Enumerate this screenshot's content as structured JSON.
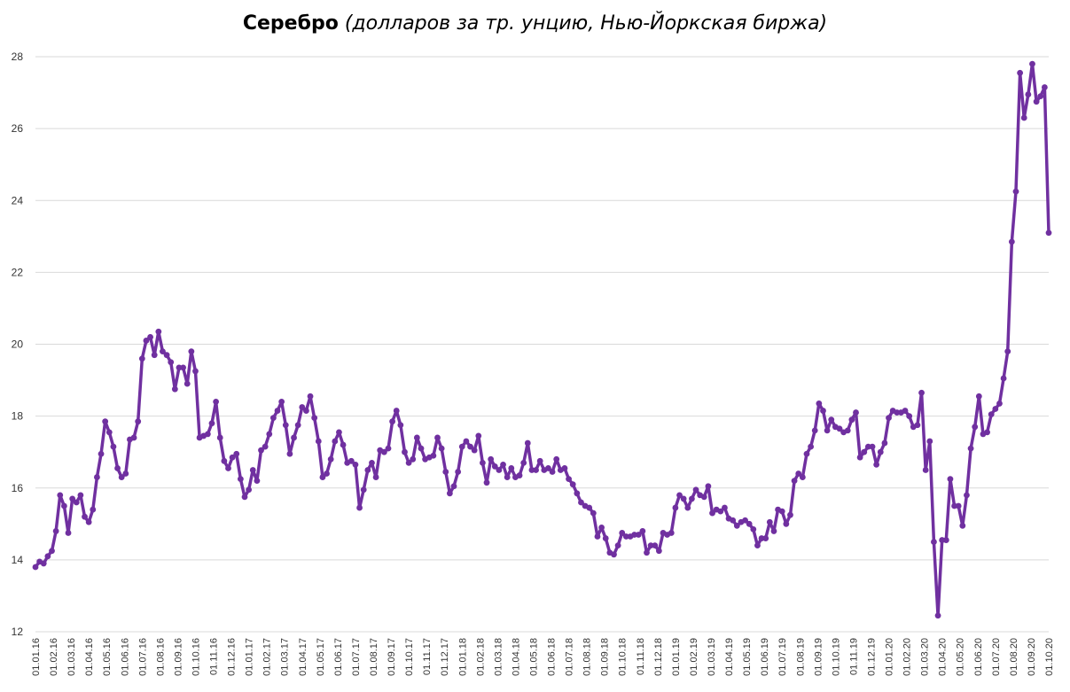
{
  "chart_data": {
    "type": "line",
    "title": "Серебро",
    "subtitle": "(долларов за тр. унцию, Нью-Йоркская биржа)",
    "xlabel": "",
    "ylabel": "",
    "ylim": [
      12,
      28
    ],
    "yticks": [
      12,
      14,
      16,
      18,
      20,
      22,
      24,
      26,
      28
    ],
    "grid": true,
    "legend": "none",
    "line_color": "#7030a0",
    "x_tick_labels": [
      "01.01.16",
      "01.02.16",
      "01.03.16",
      "01.04.16",
      "01.05.16",
      "01.06.16",
      "01.07.16",
      "01.08.16",
      "01.09.16",
      "01.10.16",
      "01.11.16",
      "01.12.16",
      "01.01.17",
      "01.02.17",
      "01.03.17",
      "01.04.17",
      "01.05.17",
      "01.06.17",
      "01.07.17",
      "01.08.17",
      "01.09.17",
      "01.10.17",
      "01.11.17",
      "01.12.17",
      "01.01.18",
      "01.02.18",
      "01.03.18",
      "01.04.18",
      "01.05.18",
      "01.06.18",
      "01.07.18",
      "01.08.18",
      "01.09.18",
      "01.10.18",
      "01.11.18",
      "01.12.18",
      "01.01.19",
      "01.02.19",
      "01.03.19",
      "01.04.19",
      "01.05.19",
      "01.06.19",
      "01.07.19",
      "01.08.19",
      "01.09.19",
      "01.10.19",
      "01.11.19",
      "01.12.19",
      "01.01.20",
      "01.02.20",
      "01.03.20",
      "01.04.20",
      "01.05.20",
      "01.06.20",
      "01.07.20",
      "01.08.20",
      "01.09.20",
      "01.10.20"
    ],
    "series": [
      {
        "values": [
          13.8,
          13.95,
          13.9,
          14.1,
          14.25,
          14.8,
          15.8,
          15.5,
          14.75,
          15.7,
          15.6,
          15.8,
          15.2,
          15.05,
          15.4,
          16.3,
          16.95,
          17.85,
          17.55,
          17.15,
          16.55,
          16.3,
          16.4,
          17.35,
          17.4,
          17.85,
          19.6,
          20.1,
          20.2,
          19.7,
          20.35,
          19.8,
          19.7,
          19.5,
          18.75,
          19.35,
          19.35,
          18.9,
          19.8,
          19.25,
          17.4,
          17.45,
          17.5,
          17.8,
          18.4,
          17.4,
          16.75,
          16.55,
          16.85,
          16.95,
          16.25,
          15.75,
          15.95,
          16.5,
          16.2,
          17.05,
          17.15,
          17.5,
          17.95,
          18.15,
          18.4,
          17.75,
          16.95,
          17.4,
          17.75,
          18.25,
          18.15,
          18.55,
          17.95,
          17.3,
          16.3,
          16.4,
          16.8,
          17.3,
          17.55,
          17.2,
          16.7,
          16.75,
          16.65,
          15.45,
          15.95,
          16.5,
          16.7,
          16.3,
          17.05,
          17.0,
          17.1,
          17.85,
          18.15,
          17.75,
          17.0,
          16.7,
          16.8,
          17.4,
          17.1,
          16.8,
          16.85,
          16.9,
          17.4,
          17.1,
          16.45,
          15.85,
          16.05,
          16.45,
          17.15,
          17.3,
          17.15,
          17.05,
          17.45,
          16.7,
          16.15,
          16.8,
          16.6,
          16.5,
          16.65,
          16.3,
          16.55,
          16.3,
          16.35,
          16.7,
          17.25,
          16.5,
          16.5,
          16.75,
          16.5,
          16.55,
          16.45,
          16.8,
          16.5,
          16.55,
          16.25,
          16.1,
          15.85,
          15.6,
          15.5,
          15.45,
          15.3,
          14.65,
          14.9,
          14.6,
          14.2,
          14.15,
          14.4,
          14.75,
          14.65,
          14.65,
          14.7,
          14.7,
          14.8,
          14.2,
          14.4,
          14.4,
          14.25,
          14.75,
          14.7,
          14.75,
          15.45,
          15.8,
          15.7,
          15.45,
          15.7,
          15.95,
          15.8,
          15.75,
          16.05,
          15.3,
          15.4,
          15.35,
          15.45,
          15.15,
          15.1,
          14.95,
          15.05,
          15.1,
          15.0,
          14.85,
          14.4,
          14.6,
          14.6,
          15.05,
          14.8,
          15.4,
          15.35,
          15.0,
          15.25,
          16.2,
          16.4,
          16.3,
          16.95,
          17.15,
          17.6,
          18.35,
          18.15,
          17.6,
          17.9,
          17.7,
          17.65,
          17.55,
          17.6,
          17.9,
          18.1,
          16.85,
          17.0,
          17.15,
          17.15,
          16.65,
          17.0,
          17.25,
          17.95,
          18.15,
          18.1,
          18.1,
          18.15,
          18.0,
          17.7,
          17.75,
          18.65,
          16.5,
          17.3,
          14.5,
          12.45,
          14.55,
          14.55,
          16.25,
          15.5,
          15.5,
          14.95,
          15.8,
          17.1,
          17.7,
          18.55,
          17.5,
          17.55,
          18.05,
          18.2,
          18.35,
          19.05,
          19.8,
          22.85,
          24.25,
          27.55,
          26.3,
          26.95,
          27.8,
          26.75,
          26.9,
          27.15,
          23.1
        ]
      }
    ]
  }
}
